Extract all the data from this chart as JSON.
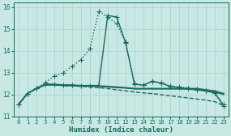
{
  "xlabel": "Humidex (Indice chaleur)",
  "xlim": [
    -0.5,
    23.5
  ],
  "ylim": [
    11,
    16.2
  ],
  "yticks": [
    11,
    12,
    13,
    14,
    15,
    16
  ],
  "xticks": [
    0,
    1,
    2,
    3,
    4,
    5,
    6,
    7,
    8,
    9,
    10,
    11,
    12,
    13,
    14,
    15,
    16,
    17,
    18,
    19,
    20,
    21,
    22,
    23
  ],
  "bg_color": "#c8e8e4",
  "grid_color": "#b0d8d4",
  "line_color": "#1a6b5a",
  "curves": [
    {
      "x": [
        0,
        1,
        2,
        3,
        4,
        5,
        6,
        7,
        8,
        9,
        10,
        11,
        12,
        13,
        14,
        15,
        16,
        17,
        18,
        19,
        20,
        21,
        22,
        23
      ],
      "y": [
        11.55,
        12.05,
        12.3,
        12.55,
        12.85,
        13.0,
        13.3,
        13.6,
        14.1,
        15.82,
        15.55,
        15.25,
        14.4,
        12.5,
        12.45,
        12.6,
        12.55,
        12.4,
        12.35,
        12.3,
        12.25,
        12.2,
        12.1,
        11.55
      ],
      "marker": "+",
      "linestyle": ":",
      "linewidth": 1.0,
      "markersize": 4
    },
    {
      "x": [
        0,
        1,
        2,
        3,
        4,
        5,
        6,
        7,
        8,
        9,
        10,
        11,
        12,
        13,
        14,
        15,
        16,
        17,
        18,
        19,
        20,
        21,
        22,
        23
      ],
      "y": [
        11.55,
        12.05,
        12.28,
        12.48,
        12.48,
        12.45,
        12.45,
        12.42,
        12.42,
        12.42,
        15.62,
        15.55,
        14.38,
        12.48,
        12.43,
        12.62,
        12.52,
        12.38,
        12.32,
        12.28,
        12.22,
        12.17,
        12.07,
        11.48
      ],
      "marker": "+",
      "linestyle": "-",
      "linewidth": 1.0,
      "markersize": 4
    },
    {
      "x": [
        0,
        1,
        2,
        3,
        4,
        5,
        6,
        7,
        8,
        9,
        10,
        11,
        12,
        13,
        14,
        15,
        16,
        17,
        18,
        19,
        20,
        21,
        22,
        23
      ],
      "y": [
        11.55,
        12.05,
        12.28,
        12.45,
        12.45,
        12.42,
        12.42,
        12.4,
        12.4,
        12.4,
        12.38,
        12.35,
        12.32,
        12.28,
        12.28,
        12.28,
        12.28,
        12.28,
        12.28,
        12.28,
        12.28,
        12.22,
        12.17,
        12.05
      ],
      "marker": "None",
      "linestyle": "-",
      "linewidth": 1.2,
      "markersize": 0
    },
    {
      "x": [
        0,
        1,
        2,
        3,
        4,
        5,
        6,
        7,
        8,
        9,
        10,
        11,
        12,
        13,
        14,
        15,
        16,
        17,
        18,
        19,
        20,
        21,
        22,
        23
      ],
      "y": [
        11.55,
        12.05,
        12.28,
        12.45,
        12.45,
        12.42,
        12.42,
        12.4,
        12.38,
        12.38,
        12.35,
        12.32,
        12.3,
        12.26,
        12.26,
        12.26,
        12.26,
        12.26,
        12.26,
        12.25,
        12.22,
        12.18,
        12.12,
        12.0
      ],
      "marker": "None",
      "linestyle": "-",
      "linewidth": 0.9,
      "markersize": 0
    },
    {
      "x": [
        0,
        1,
        2,
        3,
        4,
        5,
        6,
        7,
        8,
        9,
        10,
        11,
        12,
        13,
        14,
        15,
        16,
        17,
        18,
        19,
        20,
        21,
        22,
        23
      ],
      "y": [
        11.55,
        12.05,
        12.28,
        12.45,
        12.45,
        12.42,
        12.4,
        12.38,
        12.35,
        12.32,
        12.28,
        12.22,
        12.18,
        12.12,
        12.08,
        12.05,
        12.0,
        11.95,
        11.9,
        11.85,
        11.8,
        11.75,
        11.68,
        11.5
      ],
      "marker": "None",
      "linestyle": "--",
      "linewidth": 1.0,
      "markersize": 0
    }
  ]
}
